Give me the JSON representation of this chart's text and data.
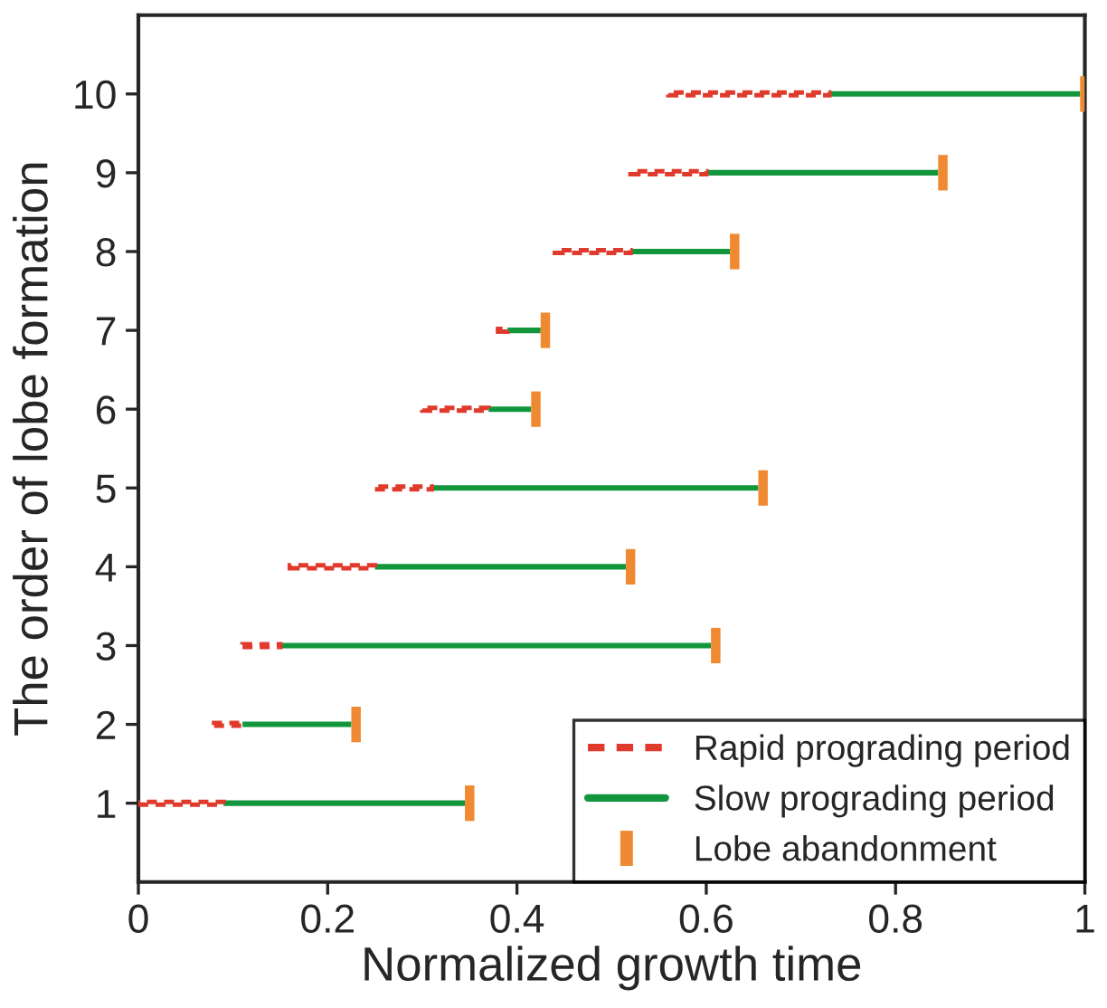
{
  "chart_data": {
    "type": "bar",
    "orientation": "horizontal",
    "xlabel": "Normalized growth time",
    "ylabel": "The order of lobe formation",
    "categories": [
      "10",
      "9",
      "8",
      "7",
      "6",
      "5",
      "4",
      "3",
      "2",
      "1"
    ],
    "series": [
      {
        "name": "Rapid prograding period",
        "color": "#e03a2c",
        "line_style": "dashed",
        "base": [
          0.56,
          0.52,
          0.44,
          0.38,
          0.3,
          0.25,
          0.16,
          0.11,
          0.08,
          0.0
        ],
        "values": [
          0.17,
          0.08,
          0.08,
          0.01,
          0.07,
          0.06,
          0.09,
          0.04,
          0.03,
          0.09
        ]
      },
      {
        "name": "Slow prograding period",
        "color": "#12963c",
        "line_style": "solid",
        "base": [
          0.73,
          0.6,
          0.52,
          0.39,
          0.37,
          0.31,
          0.25,
          0.15,
          0.11,
          0.09
        ],
        "values": [
          0.265,
          0.245,
          0.105,
          0.035,
          0.045,
          0.345,
          0.265,
          0.455,
          0.115,
          0.255
        ]
      },
      {
        "name": "Lobe abandonment",
        "color": "#f08a32",
        "line_style": "solid",
        "base": [
          0.995,
          0.845,
          0.625,
          0.425,
          0.415,
          0.655,
          0.515,
          0.605,
          0.225,
          0.345
        ],
        "values": [
          0.005,
          0.01,
          0.01,
          0.01,
          0.01,
          0.01,
          0.01,
          0.01,
          0.01,
          0.01
        ]
      }
    ],
    "xlim": [
      0,
      1
    ],
    "xticks": [
      0,
      0.2,
      0.4,
      0.6,
      0.8,
      1
    ],
    "legend": "bottom right",
    "grid": false
  }
}
